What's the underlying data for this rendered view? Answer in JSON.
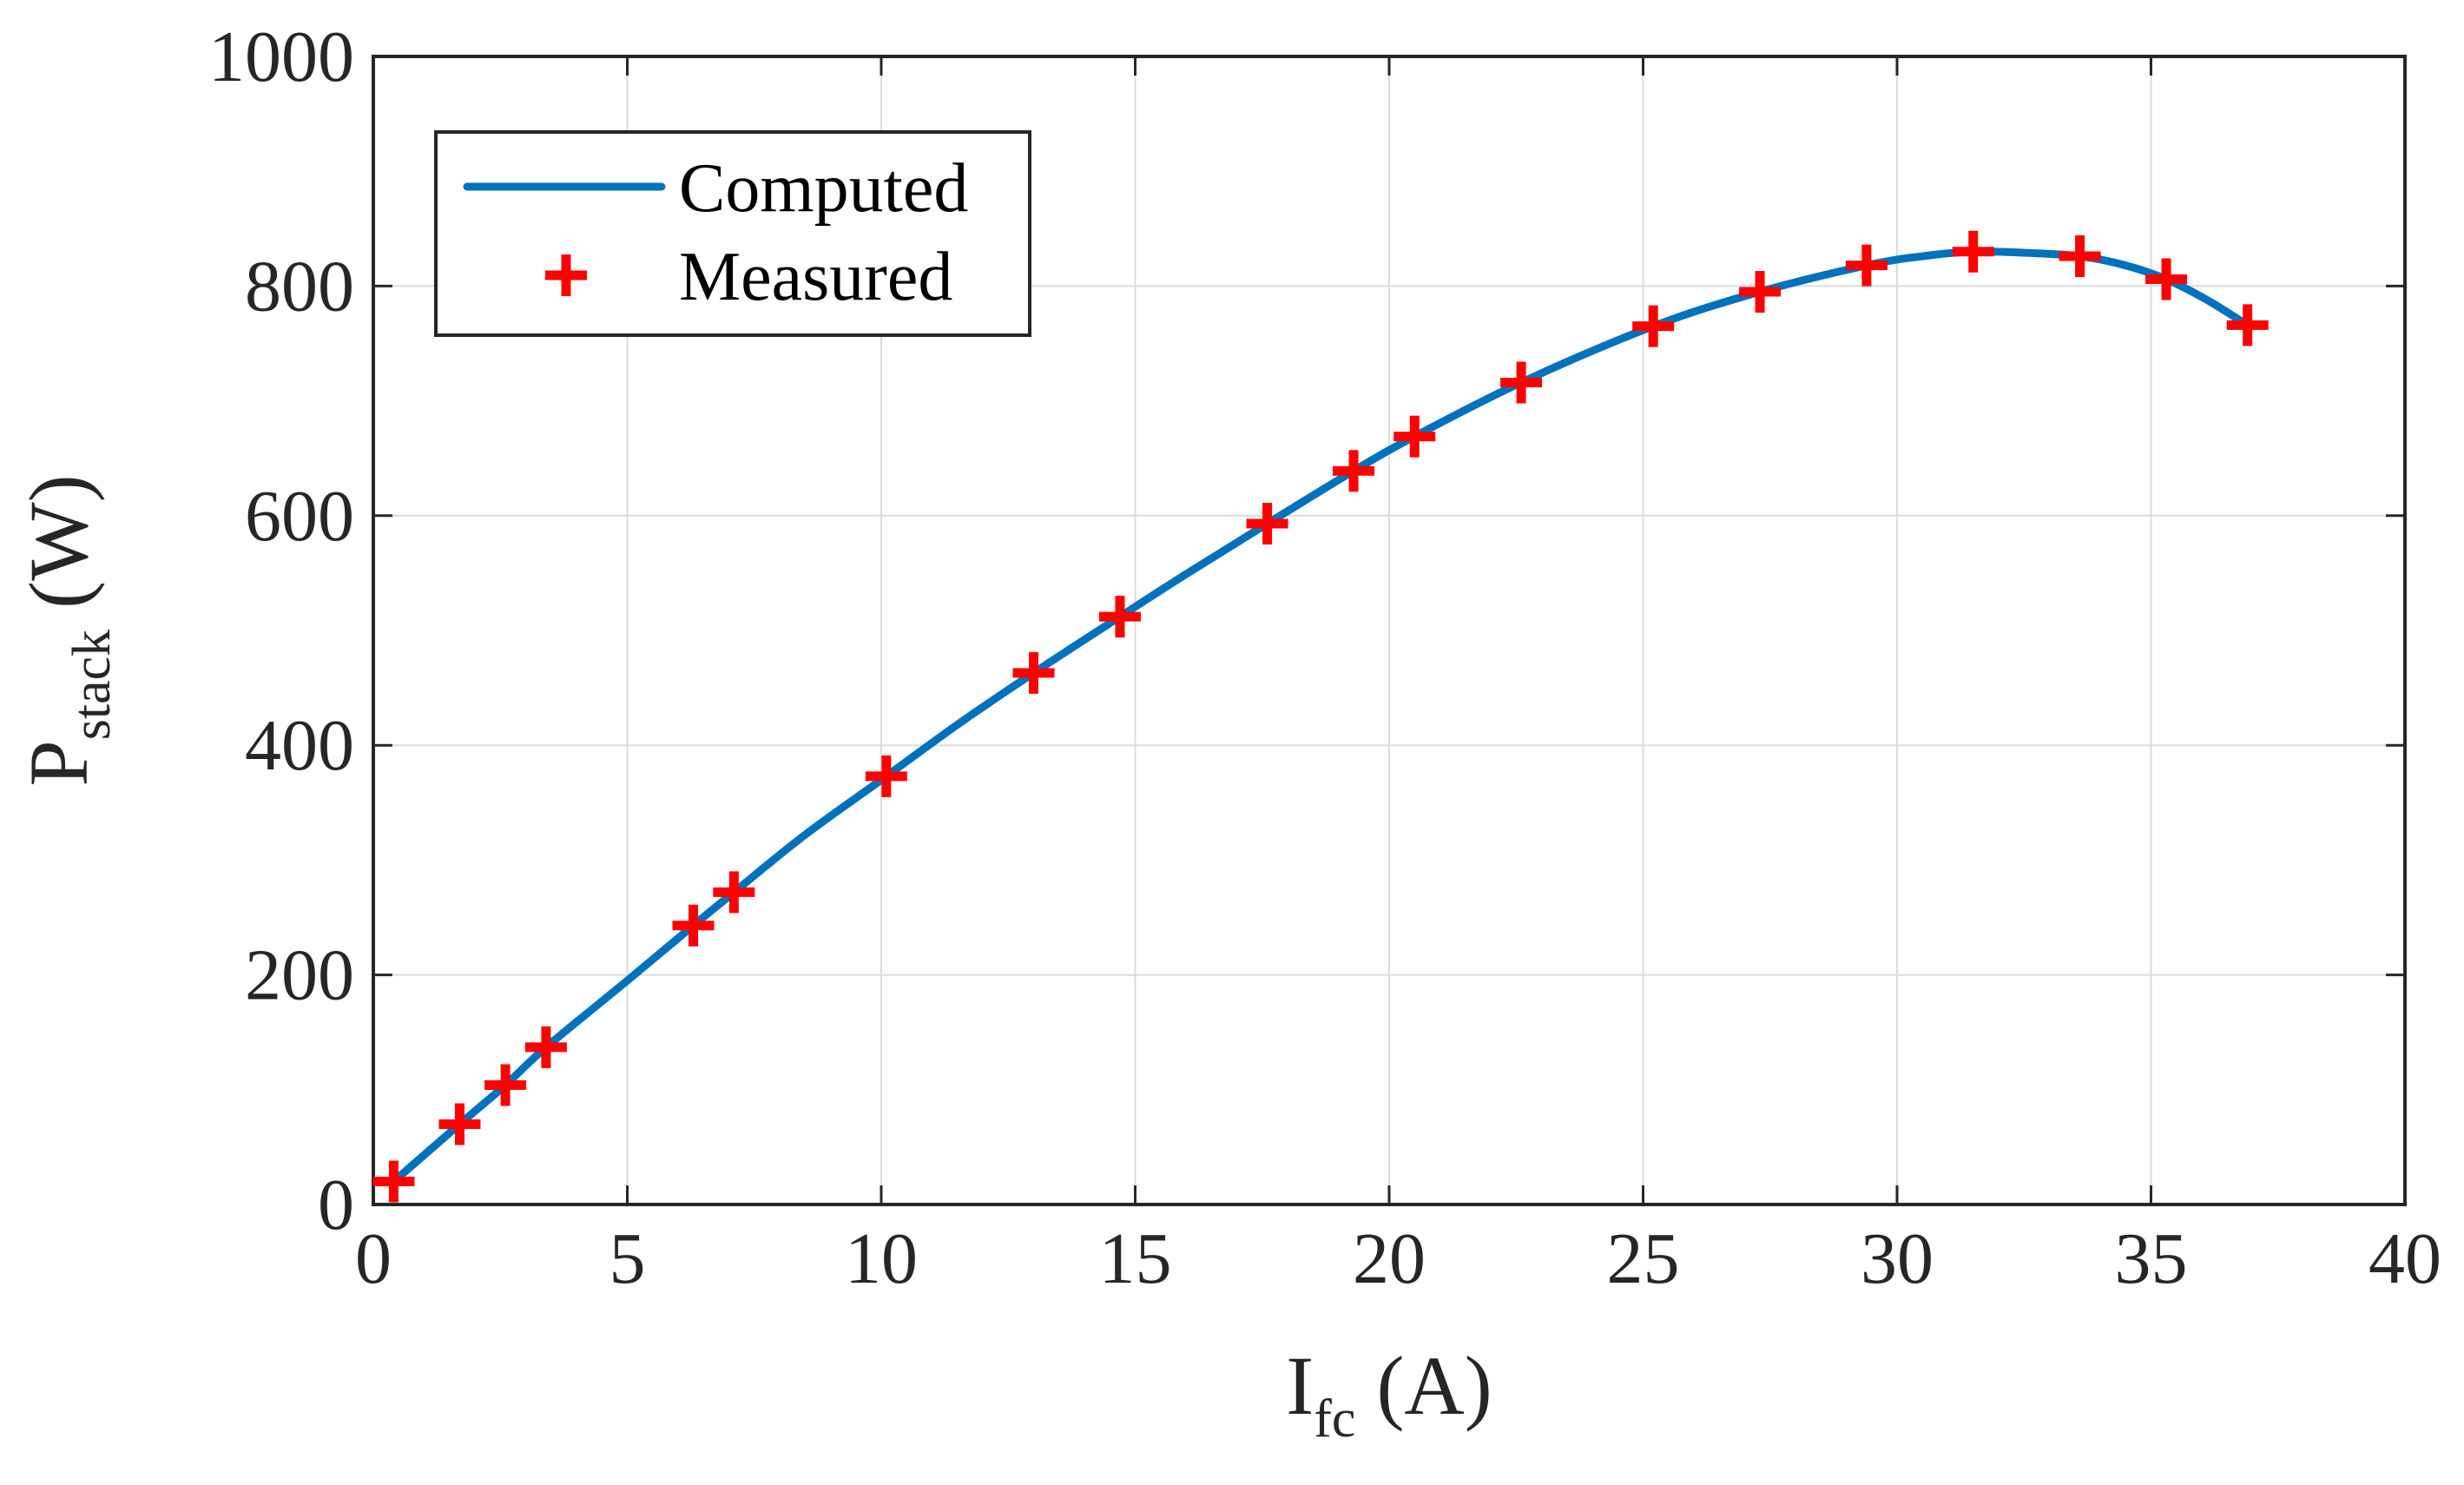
{
  "chart_data": {
    "type": "line",
    "title": "",
    "xlabel": {
      "main": "I",
      "sub": "fc",
      "unit": " (A)"
    },
    "ylabel": {
      "main": "P",
      "sub": "stack",
      "unit": " (W)"
    },
    "xlim": [
      0,
      40
    ],
    "ylim": [
      0,
      1000
    ],
    "xticks": [
      0,
      5,
      10,
      15,
      20,
      25,
      30,
      35,
      40
    ],
    "yticks": [
      0,
      200,
      400,
      600,
      800,
      1000
    ],
    "grid": true,
    "legend_position": "top-left",
    "series": [
      {
        "name": "Computed",
        "style": "line",
        "color": "#0072BD",
        "x": [
          0.4,
          1.7,
          2.6,
          3.4,
          5.0,
          6.3,
          7.1,
          8.5,
          10.1,
          11.5,
          13.0,
          14.7,
          16.0,
          17.6,
          19.3,
          20.5,
          22.6,
          25.2,
          27.3,
          29.4,
          30.5,
          31.5,
          32.5,
          33.6,
          34.5,
          35.3,
          36.1,
          36.9
        ],
        "y": [
          20,
          70,
          104,
          137,
          195,
          243,
          272,
          322,
          373,
          418,
          463,
          512,
          549,
          593,
          639,
          669,
          716,
          765,
          795,
          818,
          826,
          830,
          829,
          826,
          818,
          806,
          788,
          766
        ]
      },
      {
        "name": "Measured",
        "style": "marker",
        "marker": "+",
        "color": "#FF0000",
        "x": [
          0.4,
          1.7,
          2.6,
          3.4,
          6.3,
          7.1,
          10.1,
          13.0,
          14.7,
          17.6,
          19.3,
          20.5,
          22.6,
          25.2,
          27.3,
          29.4,
          31.5,
          33.6,
          35.3,
          36.9
        ],
        "y": [
          20,
          70,
          104,
          137,
          243,
          272,
          373,
          463,
          512,
          593,
          639,
          669,
          716,
          765,
          795,
          818,
          830,
          826,
          806,
          766
        ]
      }
    ]
  }
}
